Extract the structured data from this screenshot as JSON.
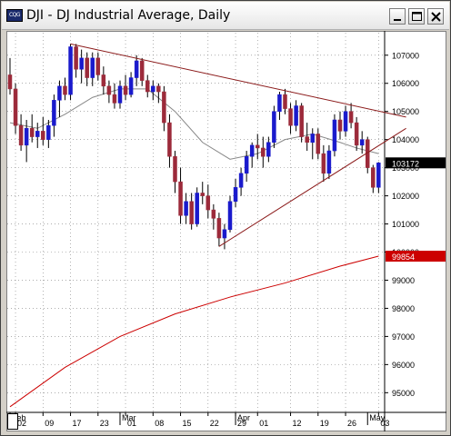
{
  "window": {
    "title": "DJI - DJ Industrial Average, Daily",
    "icon_name": "chart-app-icon",
    "icon_text": "CQG",
    "buttons": [
      "minimize-icon",
      "maximize-icon",
      "close-icon"
    ]
  },
  "chart_data": {
    "type": "candlestick",
    "title": "DJI - DJ Industrial Average, Daily",
    "y_ticks": [
      95000,
      96000,
      97000,
      98000,
      99000,
      100000,
      101000,
      102000,
      103000,
      104000,
      105000,
      106000,
      107000
    ],
    "y_tick_labels": [
      "95000",
      "96000",
      "97000",
      "98000",
      "99000",
      "100000",
      "101000",
      "102000",
      "103000",
      "104000",
      "105000",
      "106000",
      "107000"
    ],
    "ylim": [
      94300,
      107800
    ],
    "x_day_labels": [
      "02",
      "09",
      "17",
      "23",
      "01",
      "08",
      "15",
      "22",
      "29",
      "01",
      "12",
      "19",
      "26",
      "03"
    ],
    "x_day_label_index": [
      1,
      6,
      11,
      16,
      21,
      26,
      31,
      36,
      41,
      45,
      51,
      56,
      61,
      67
    ],
    "x_month_labels": [
      "Feb",
      "Mar",
      "Apr",
      "May"
    ],
    "x_month_label_index": [
      0,
      20,
      41,
      65
    ],
    "n_bars": 68,
    "last_price_label": "103172",
    "last_price": 103172,
    "ma_price_label": "99854",
    "ma_price": 99854,
    "colors": {
      "up": "#1a1acc",
      "down": "#9c2a3a",
      "trendline": "#8b1a1a",
      "ma_short": "#888888",
      "ma_long": "#cc0000",
      "grid": "#7f7f7f",
      "last_label_bg": "#000000",
      "ma_label_bg": "#cc0000"
    },
    "candles": [
      [
        106300,
        106900,
        105600,
        105800
      ],
      [
        105800,
        106000,
        104200,
        104500
      ],
      [
        104500,
        104900,
        103600,
        103800
      ],
      [
        103800,
        104700,
        103200,
        104400
      ],
      [
        104400,
        104900,
        103900,
        104100
      ],
      [
        104100,
        104600,
        103700,
        104300
      ],
      [
        104300,
        104800,
        103800,
        104000
      ],
      [
        104000,
        104700,
        103700,
        104500
      ],
      [
        104500,
        105600,
        104100,
        105400
      ],
      [
        105400,
        106100,
        104800,
        105900
      ],
      [
        105900,
        106200,
        105400,
        105600
      ],
      [
        105600,
        107400,
        105400,
        107300
      ],
      [
        107300,
        107400,
        106200,
        106500
      ],
      [
        106500,
        107200,
        106000,
        106900
      ],
      [
        106900,
        107100,
        105900,
        106200
      ],
      [
        106200,
        107100,
        105900,
        106900
      ],
      [
        106900,
        107100,
        106100,
        106300
      ],
      [
        106300,
        106600,
        105600,
        105900
      ],
      [
        105900,
        106100,
        105300,
        105600
      ],
      [
        105600,
        106000,
        105100,
        105300
      ],
      [
        105300,
        106100,
        105100,
        105900
      ],
      [
        105900,
        106300,
        105400,
        105600
      ],
      [
        105600,
        106400,
        105500,
        106200
      ],
      [
        106200,
        107000,
        105900,
        106800
      ],
      [
        106800,
        106900,
        105900,
        106100
      ],
      [
        106100,
        106300,
        105500,
        105700
      ],
      [
        105700,
        106100,
        105400,
        105900
      ],
      [
        105900,
        106000,
        105300,
        105700
      ],
      [
        105700,
        105900,
        104300,
        104600
      ],
      [
        104600,
        104900,
        103000,
        103400
      ],
      [
        103400,
        103600,
        102100,
        102500
      ],
      [
        102500,
        103000,
        101000,
        101300
      ],
      [
        101300,
        102100,
        101000,
        101800
      ],
      [
        101800,
        102100,
        100800,
        101000
      ],
      [
        101000,
        102300,
        100900,
        102100
      ],
      [
        102100,
        102500,
        101700,
        102000
      ],
      [
        102000,
        102400,
        101200,
        101500
      ],
      [
        101500,
        101700,
        100800,
        101200
      ],
      [
        101200,
        101400,
        100200,
        100500
      ],
      [
        100500,
        101000,
        100100,
        100800
      ],
      [
        100800,
        102000,
        100700,
        101800
      ],
      [
        101800,
        102600,
        101600,
        102300
      ],
      [
        102300,
        103000,
        102000,
        102800
      ],
      [
        102800,
        103600,
        102500,
        103400
      ],
      [
        103400,
        103900,
        103000,
        103800
      ],
      [
        103800,
        104200,
        103300,
        103700
      ],
      [
        103700,
        104100,
        103000,
        103400
      ],
      [
        103400,
        104100,
        103200,
        103900
      ],
      [
        103900,
        105200,
        103700,
        105000
      ],
      [
        105000,
        105700,
        104700,
        105600
      ],
      [
        105600,
        105800,
        104900,
        105100
      ],
      [
        105100,
        105300,
        104200,
        104500
      ],
      [
        104500,
        105400,
        104300,
        105200
      ],
      [
        105200,
        105300,
        103900,
        104100
      ],
      [
        104100,
        104600,
        103600,
        103900
      ],
      [
        103900,
        104400,
        103300,
        104200
      ],
      [
        104200,
        104400,
        103300,
        103500
      ],
      [
        103500,
        103800,
        102500,
        102800
      ],
      [
        102800,
        103800,
        102600,
        103600
      ],
      [
        103600,
        104900,
        103400,
        104700
      ],
      [
        104700,
        105000,
        104000,
        104300
      ],
      [
        104300,
        105200,
        104100,
        105000
      ],
      [
        105000,
        105300,
        104400,
        104600
      ],
      [
        104600,
        104800,
        103600,
        103800
      ],
      [
        103800,
        104300,
        103500,
        104000
      ],
      [
        104000,
        104100,
        102800,
        103000
      ],
      [
        103000,
        103100,
        102100,
        102300
      ],
      [
        102300,
        103200,
        102100,
        103172
      ]
    ],
    "ma_short_points": [
      [
        0,
        104600
      ],
      [
        5,
        104400
      ],
      [
        10,
        104900
      ],
      [
        15,
        105500
      ],
      [
        20,
        105800
      ],
      [
        25,
        105800
      ],
      [
        30,
        105000
      ],
      [
        35,
        103900
      ],
      [
        40,
        103300
      ],
      [
        45,
        103500
      ],
      [
        50,
        104000
      ],
      [
        55,
        104200
      ],
      [
        60,
        103900
      ],
      [
        63,
        103700
      ],
      [
        67,
        103500
      ]
    ],
    "ma_long_points": [
      [
        0,
        94500
      ],
      [
        10,
        95900
      ],
      [
        20,
        97000
      ],
      [
        30,
        97800
      ],
      [
        40,
        98400
      ],
      [
        50,
        98900
      ],
      [
        60,
        99500
      ],
      [
        67,
        99854
      ]
    ],
    "trendlines": [
      {
        "name": "upper-resistance",
        "from": [
          11,
          107400
        ],
        "to": [
          72,
          104800
        ]
      },
      {
        "name": "lower-support",
        "from": [
          38,
          100200
        ],
        "to": [
          72,
          104400
        ]
      }
    ]
  }
}
